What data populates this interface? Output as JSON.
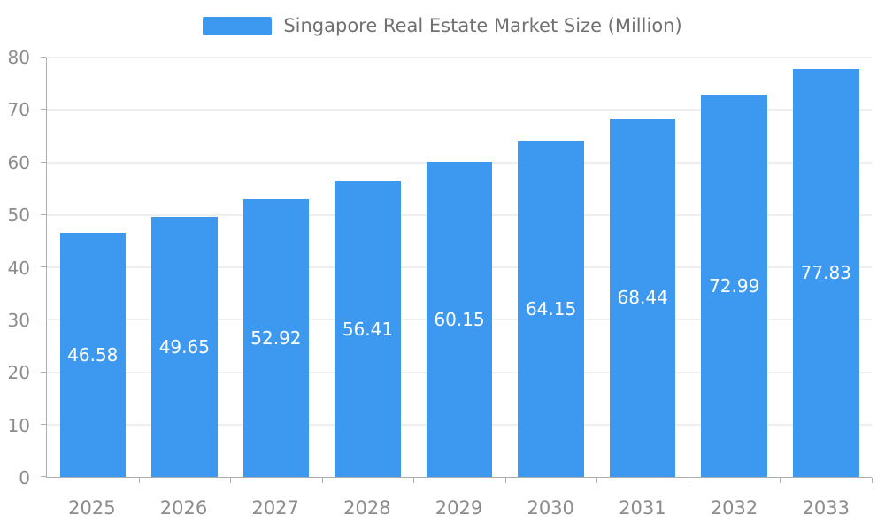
{
  "chart_data": {
    "type": "bar",
    "title": "Singapore Real Estate Market Size (Million)",
    "categories": [
      "2025",
      "2026",
      "2027",
      "2028",
      "2029",
      "2030",
      "2031",
      "2032",
      "2033"
    ],
    "values": [
      46.58,
      49.65,
      52.92,
      56.41,
      60.15,
      64.15,
      68.44,
      72.99,
      77.83
    ],
    "xlabel": "",
    "ylabel": "",
    "ylim": [
      0,
      80
    ],
    "y_ticks": [
      0,
      10,
      20,
      30,
      40,
      50,
      60,
      70,
      80
    ],
    "grid": true,
    "legend_position": "top-center",
    "label_position": "inside-center",
    "colors": {
      "bar": "#3d99f0",
      "bar_label": "#ffffff",
      "grid_line": "#dcdcdc",
      "axis_line": "#adadad",
      "tick_text": "#8c8c8c",
      "legend_text": "#717171",
      "background": "#ffffff"
    }
  }
}
